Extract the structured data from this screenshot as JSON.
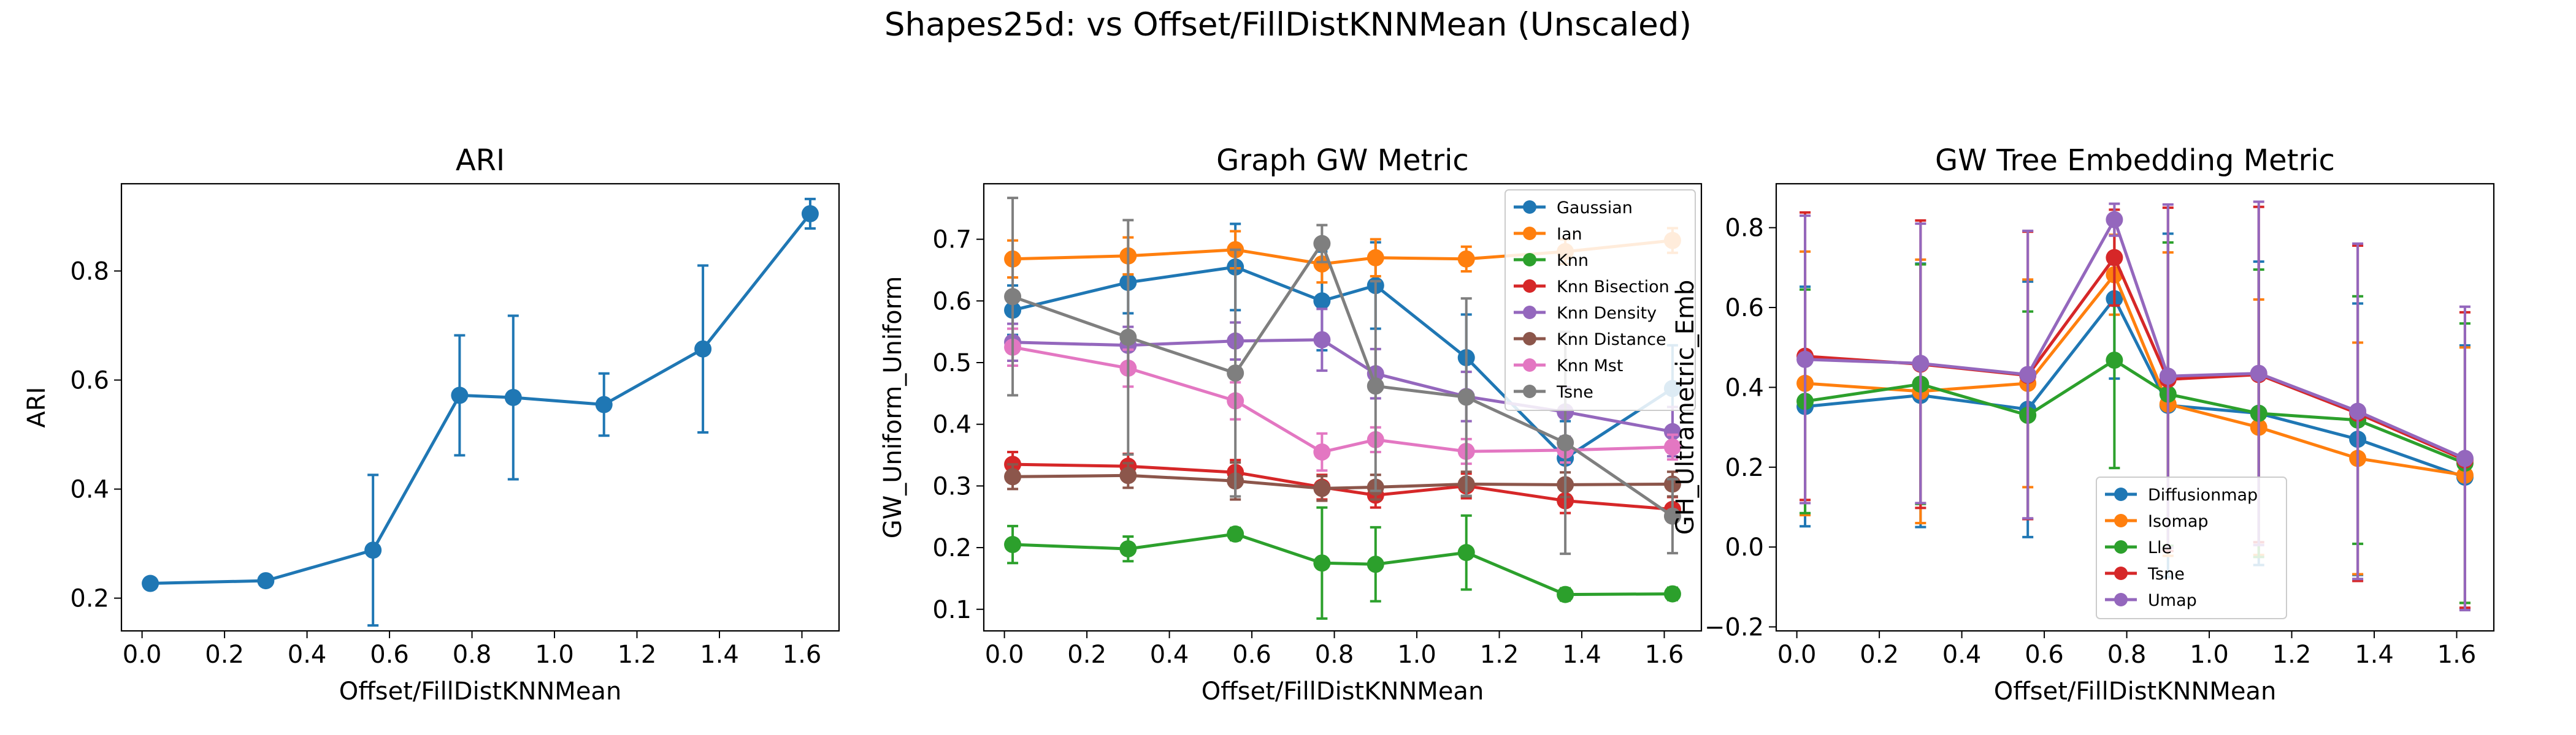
{
  "figure": {
    "suptitle": "Shapes25d: vs Offset/FillDistKNNMean (Unscaled)"
  },
  "chart_data": [
    {
      "type": "line",
      "title": "ARI",
      "xlabel": "Offset/FillDistKNNMean",
      "ylabel": "ARI",
      "xlim": [
        -0.05,
        1.69
      ],
      "ylim": [
        0.14,
        0.96
      ],
      "xticks": [
        0.0,
        0.2,
        0.4,
        0.6,
        0.8,
        1.0,
        1.2,
        1.4,
        1.6
      ],
      "yticks": [
        0.2,
        0.4,
        0.6,
        0.8
      ],
      "xtick_labels": [
        "0.0",
        "0.2",
        "0.4",
        "0.6",
        "0.8",
        "1.0",
        "1.2",
        "1.4",
        "1.6"
      ],
      "ytick_labels": [
        "0.2",
        "0.4",
        "0.6",
        "0.8"
      ],
      "legend": null,
      "series": [
        {
          "name": "",
          "color": "#1f77b4",
          "x": [
            0.02,
            0.3,
            0.56,
            0.77,
            0.9,
            1.12,
            1.36,
            1.62
          ],
          "y": [
            0.227,
            0.232,
            0.288,
            0.572,
            0.568,
            0.555,
            0.657,
            0.905
          ],
          "err": [
            0.004,
            0.005,
            0.138,
            0.11,
            0.15,
            0.057,
            0.153,
            0.027
          ]
        }
      ]
    },
    {
      "type": "line",
      "title": "Graph GW Metric",
      "xlabel": "Offset/FillDistKNNMean",
      "ylabel": "GW_Uniform_Uniform",
      "xlim": [
        -0.05,
        1.69
      ],
      "ylim": [
        0.065,
        0.79
      ],
      "xticks": [
        0.0,
        0.2,
        0.4,
        0.6,
        0.8,
        1.0,
        1.2,
        1.4,
        1.6
      ],
      "yticks": [
        0.1,
        0.2,
        0.3,
        0.4,
        0.5,
        0.6,
        0.7
      ],
      "xtick_labels": [
        "0.0",
        "0.2",
        "0.4",
        "0.6",
        "0.8",
        "1.0",
        "1.2",
        "1.4",
        "1.6"
      ],
      "ytick_labels": [
        "0.1",
        "0.2",
        "0.3",
        "0.4",
        "0.5",
        "0.6",
        "0.7"
      ],
      "legend": "top-right",
      "x": [
        0.02,
        0.3,
        0.56,
        0.77,
        0.9,
        1.12,
        1.36,
        1.62
      ],
      "series": [
        {
          "name": "Gaussian",
          "color": "#1f77b4",
          "y": [
            0.585,
            0.63,
            0.655,
            0.6,
            0.625,
            0.508,
            0.345,
            0.458
          ],
          "err": [
            0.04,
            0.05,
            0.07,
            0.08,
            0.07,
            0.07,
            0.06,
            0.07
          ]
        },
        {
          "name": "Ian",
          "color": "#ff7f0e",
          "y": [
            0.668,
            0.673,
            0.683,
            0.66,
            0.67,
            0.668,
            0.68,
            0.698
          ],
          "err": [
            0.03,
            0.03,
            0.03,
            0.03,
            0.03,
            0.02,
            0.02,
            0.02
          ]
        },
        {
          "name": "Knn",
          "color": "#2ca02c",
          "y": [
            0.205,
            0.198,
            0.222,
            0.175,
            0.173,
            0.192,
            0.124,
            0.125
          ],
          "err": [
            0.03,
            0.02,
            0.01,
            0.09,
            0.06,
            0.06,
            0.01,
            0.01
          ]
        },
        {
          "name": "Knn Bisection",
          "color": "#d62728",
          "y": [
            0.335,
            0.332,
            0.322,
            0.298,
            0.285,
            0.3,
            0.276,
            0.262
          ],
          "err": [
            0.02,
            0.02,
            0.02,
            0.02,
            0.02,
            0.02,
            0.02,
            0.02
          ]
        },
        {
          "name": "Knn Density",
          "color": "#9467bd",
          "y": [
            0.533,
            0.528,
            0.535,
            0.537,
            0.482,
            0.445,
            0.42,
            0.388
          ],
          "err": [
            0.03,
            0.03,
            0.03,
            0.05,
            0.04,
            0.04,
            0.04,
            0.04
          ]
        },
        {
          "name": "Knn Distance",
          "color": "#8c564b",
          "y": [
            0.315,
            0.317,
            0.308,
            0.296,
            0.298,
            0.303,
            0.302,
            0.303
          ],
          "err": [
            0.02,
            0.02,
            0.03,
            0.02,
            0.02,
            0.02,
            0.02,
            0.02
          ]
        },
        {
          "name": "Knn Mst",
          "color": "#e377c2",
          "y": [
            0.525,
            0.491,
            0.438,
            0.355,
            0.375,
            0.356,
            0.358,
            0.363
          ],
          "err": [
            0.03,
            0.03,
            0.03,
            0.03,
            0.02,
            0.02,
            0.02,
            0.02
          ]
        },
        {
          "name": "Tsne",
          "color": "#7f7f7f",
          "y": [
            0.607,
            0.541,
            0.483,
            0.693,
            0.462,
            0.444,
            0.37,
            0.251
          ],
          "err": [
            0.16,
            0.19,
            0.2,
            0.03,
            0.17,
            0.16,
            0.18,
            0.06
          ]
        }
      ]
    },
    {
      "type": "line",
      "title": "GW Tree Embedding Metric",
      "xlabel": "Offset/FillDistKNNMean",
      "ylabel": "GH_Ultrametric_Emb",
      "xlim": [
        -0.05,
        1.69
      ],
      "ylim": [
        -0.21,
        0.91
      ],
      "xticks": [
        0.0,
        0.2,
        0.4,
        0.6,
        0.8,
        1.0,
        1.2,
        1.4,
        1.6
      ],
      "yticks": [
        -0.2,
        0.0,
        0.2,
        0.4,
        0.6,
        0.8
      ],
      "xtick_labels": [
        "0.0",
        "0.2",
        "0.4",
        "0.6",
        "0.8",
        "1.0",
        "1.2",
        "1.4",
        "1.6"
      ],
      "ytick_labels": [
        "−0.2",
        "0.0",
        "0.2",
        "0.4",
        "0.6",
        "0.8"
      ],
      "legend": "lower-center",
      "x": [
        0.02,
        0.3,
        0.56,
        0.77,
        0.9,
        1.12,
        1.36,
        1.62
      ],
      "series": [
        {
          "name": "Diffusionmap",
          "color": "#1f77b4",
          "y": [
            0.352,
            0.38,
            0.345,
            0.622,
            0.355,
            0.335,
            0.27,
            0.175
          ],
          "err": [
            0.3,
            0.33,
            0.32,
            0.2,
            0.43,
            0.38,
            0.34,
            0.33
          ]
        },
        {
          "name": "Isomap",
          "color": "#ff7f0e",
          "y": [
            0.41,
            0.39,
            0.41,
            0.682,
            0.358,
            0.3,
            0.222,
            0.18
          ],
          "err": [
            0.33,
            0.33,
            0.26,
            0.1,
            0.38,
            0.32,
            0.29,
            0.32
          ]
        },
        {
          "name": "Lle",
          "color": "#2ca02c",
          "y": [
            0.365,
            0.408,
            0.33,
            0.468,
            0.383,
            0.335,
            0.318,
            0.21
          ],
          "err": [
            0.28,
            0.3,
            0.26,
            0.27,
            0.38,
            0.36,
            0.31,
            0.35
          ]
        },
        {
          "name": "Tsne",
          "color": "#d62728",
          "y": [
            0.478,
            0.458,
            0.43,
            0.725,
            0.42,
            0.432,
            0.335,
            0.218
          ],
          "err": [
            0.36,
            0.36,
            0.36,
            0.12,
            0.43,
            0.42,
            0.42,
            0.37
          ]
        },
        {
          "name": "Umap",
          "color": "#9467bd",
          "y": [
            0.47,
            0.46,
            0.432,
            0.82,
            0.428,
            0.435,
            0.34,
            0.222
          ],
          "err": [
            0.36,
            0.35,
            0.36,
            0.04,
            0.43,
            0.43,
            0.42,
            0.38
          ]
        }
      ]
    }
  ]
}
